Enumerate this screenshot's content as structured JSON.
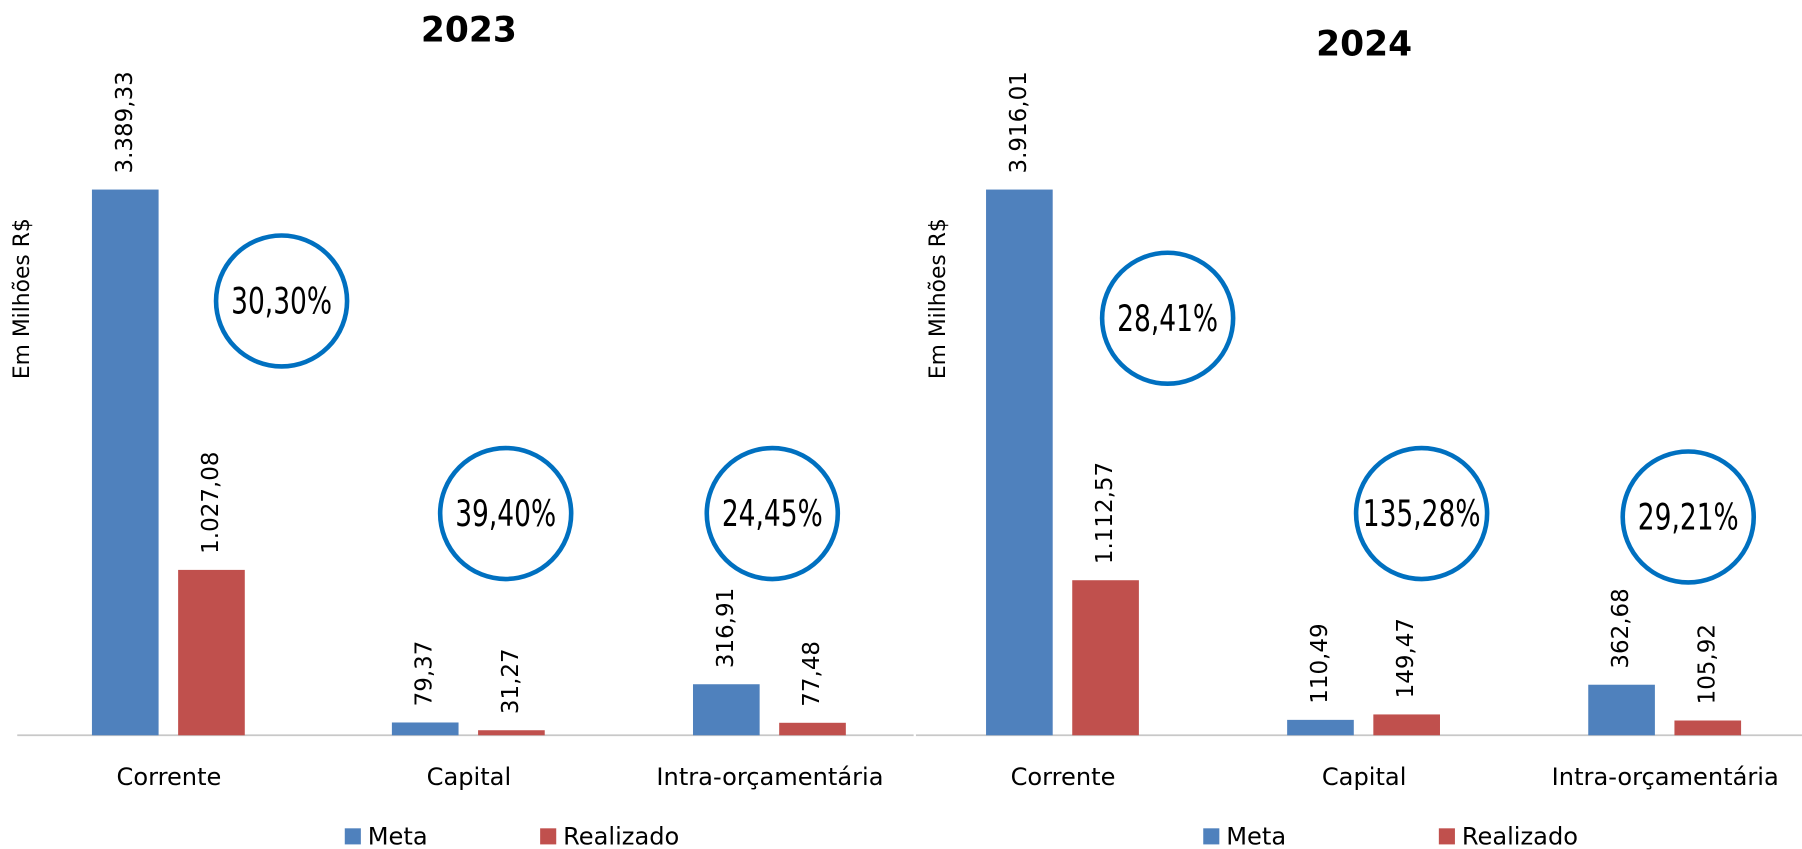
{
  "chart_data": [
    {
      "type": "bar",
      "title": "2023",
      "y_label": "Em Milhões R$",
      "categories": [
        "Corrente",
        "Capital",
        "Intra-orçamentária"
      ],
      "series": [
        {
          "name": "Meta",
          "color": "#4f81bd",
          "values": [
            3389.33,
            79.37,
            316.91
          ],
          "value_labels": [
            "3.389,33",
            "79,37",
            "316,91"
          ]
        },
        {
          "name": "Realizado",
          "color": "#c0504d",
          "values": [
            1027.08,
            31.27,
            77.48
          ],
          "value_labels": [
            "1.027,08",
            "31,27",
            "77,48"
          ]
        }
      ],
      "annotations": [
        {
          "value": 30.3,
          "label": "30,30%"
        },
        {
          "value": 39.4,
          "label": "39,40%"
        },
        {
          "value": 24.45,
          "label": "24,45%"
        }
      ],
      "annotation_color": "#0070c0"
    },
    {
      "type": "bar",
      "title": "2024",
      "y_label": "Em Milhões R$",
      "categories": [
        "Corrente",
        "Capital",
        "Intra-orçamentária"
      ],
      "series": [
        {
          "name": "Meta",
          "color": "#4f81bd",
          "values": [
            3916.01,
            110.49,
            362.68
          ],
          "value_labels": [
            "3.916,01",
            "110,49",
            "362,68"
          ]
        },
        {
          "name": "Realizado",
          "color": "#c0504d",
          "values": [
            1112.57,
            149.47,
            105.92
          ],
          "value_labels": [
            "1.112,57",
            "149,47",
            "105,92"
          ]
        }
      ],
      "annotations": [
        {
          "value": 28.41,
          "label": "28,41%"
        },
        {
          "value": 135.28,
          "label": "135,28%"
        },
        {
          "value": 29.21,
          "label": "29,21%"
        }
      ],
      "annotation_color": "#0070c0"
    }
  ]
}
